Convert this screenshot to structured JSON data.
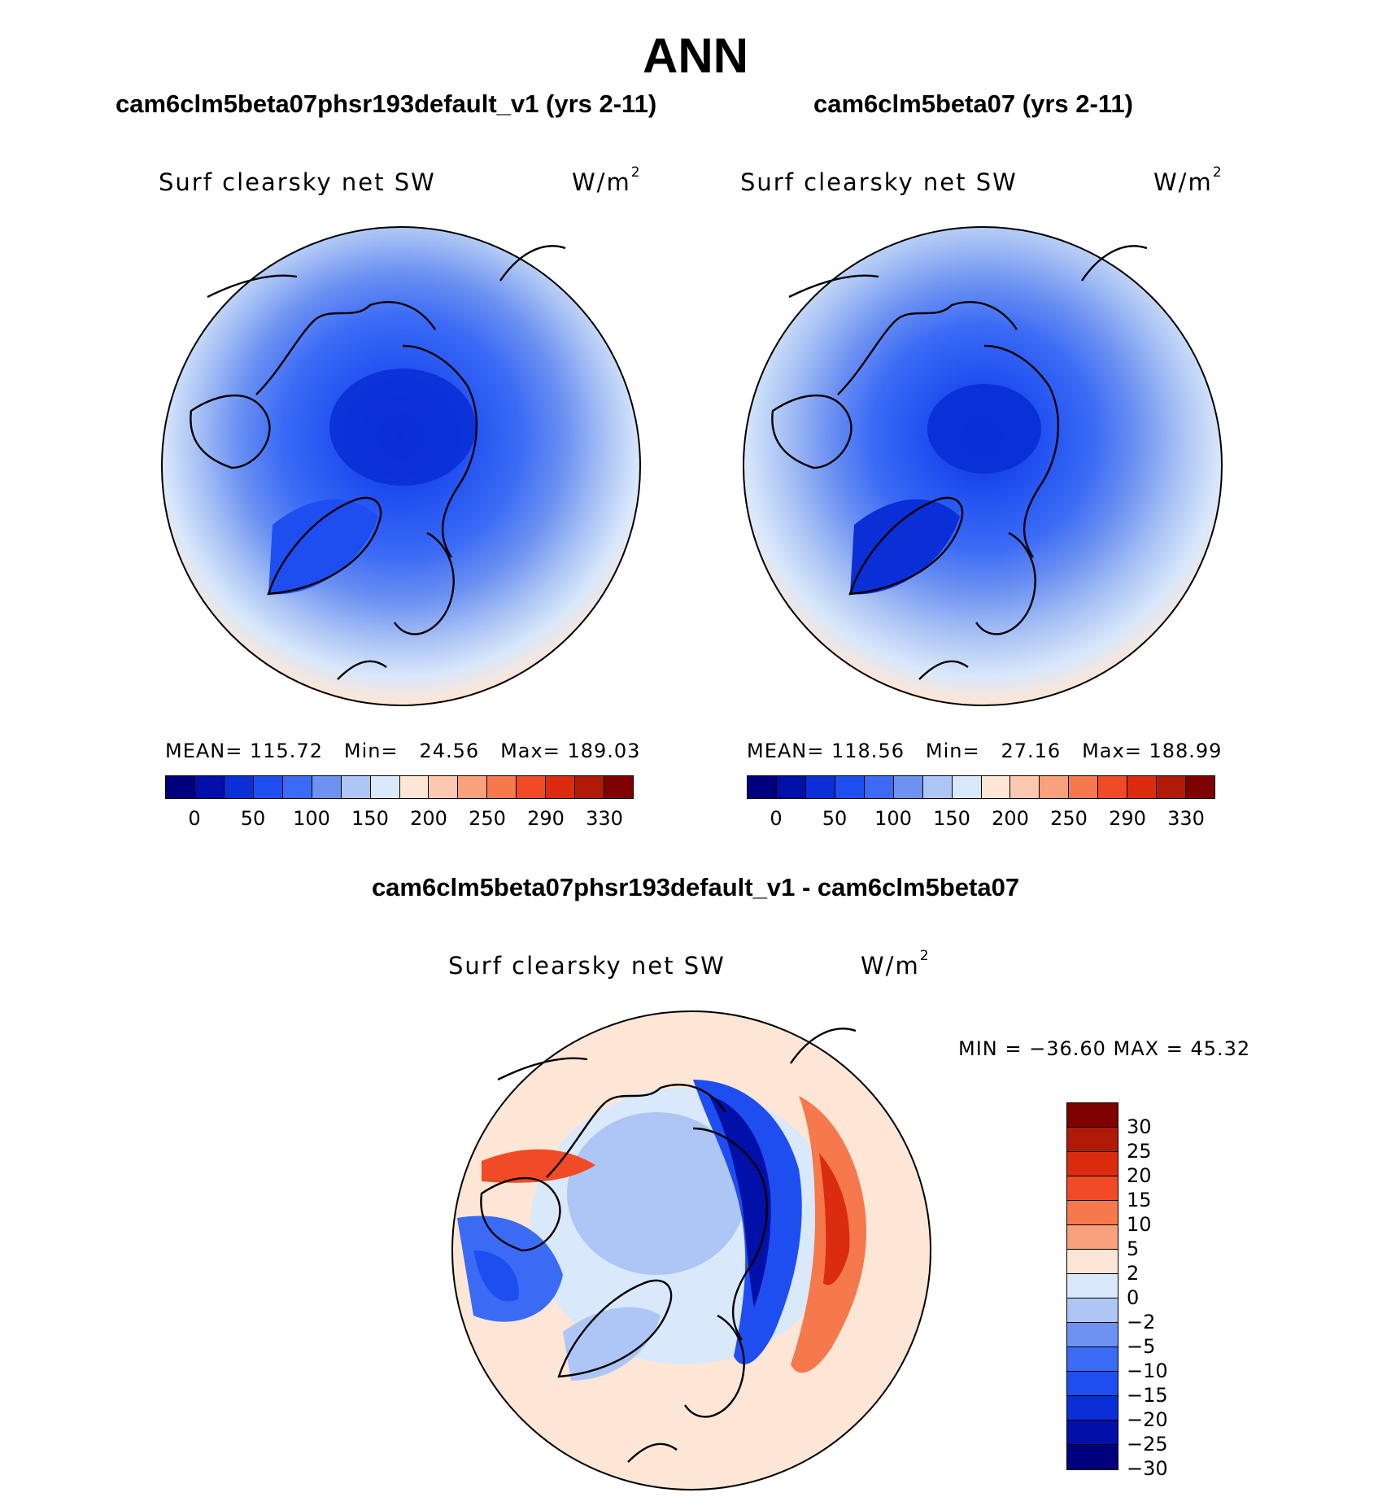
{
  "season": "ANN",
  "panels": {
    "test": {
      "title": "cam6clm5beta07phsr193default_v1 (yrs 2-11)",
      "variable": "Surf clearsky net SW",
      "units_base": "W/m",
      "units_exp": "2",
      "stats": {
        "mean_label": "MEAN=",
        "mean": "115.72",
        "min_label": "Min=",
        "min": "24.56",
        "max_label": "Max=",
        "max": "189.03"
      }
    },
    "control": {
      "title": "cam6clm5beta07 (yrs 2-11)",
      "variable": "Surf clearsky net SW",
      "units_base": "W/m",
      "units_exp": "2",
      "stats": {
        "mean_label": "MEAN=",
        "mean": "118.56",
        "min_label": "Min=",
        "min": "27.16",
        "max_label": "Max=",
        "max": "188.99"
      }
    },
    "diff": {
      "title": "cam6clm5beta07phsr193default_v1 - cam6clm5beta07",
      "variable": "Surf clearsky net SW",
      "units_base": "W/m",
      "units_exp": "2",
      "stats_text": "MIN = −36.60 MAX =   45.32"
    }
  },
  "colorbar_abs": {
    "colors": [
      "#00007f",
      "#0010a8",
      "#0a2fd6",
      "#1f4ef0",
      "#3b6bf5",
      "#6d92f2",
      "#aec6f5",
      "#d9e8fb",
      "#fde6d6",
      "#fcc8b0",
      "#f9a07c",
      "#f6784d",
      "#f04b26",
      "#dc2c10",
      "#b01b08",
      "#7f0000"
    ],
    "tick_labels": [
      "0",
      "50",
      "100",
      "150",
      "200",
      "250",
      "290",
      "330"
    ]
  },
  "colorbar_diff": {
    "colors": [
      "#7f0000",
      "#b01b08",
      "#dc2c10",
      "#f04b26",
      "#f6784d",
      "#f9a07c",
      "#fde6d6",
      "#d9e8fb",
      "#aec6f5",
      "#6d92f2",
      "#3b6bf5",
      "#1f4ef0",
      "#0a2fd6",
      "#0010a8",
      "#00007f"
    ],
    "tick_labels": [
      "30",
      "25",
      "20",
      "15",
      "10",
      "5",
      "2",
      "0",
      "−2",
      "−5",
      "−10",
      "−15",
      "−20",
      "−25",
      "−30"
    ]
  }
}
